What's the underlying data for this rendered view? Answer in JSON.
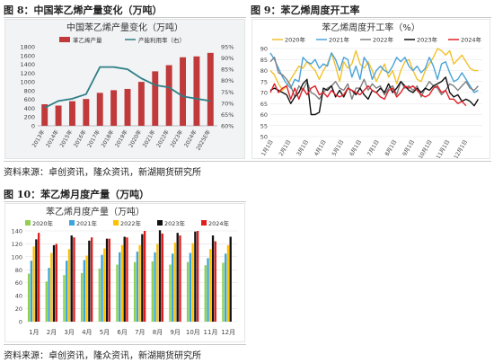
{
  "fig8": {
    "title": "图 8：中国苯乙烯产量变化（万吨）",
    "chart_data": {
      "type": "bar",
      "title": "中国苯乙烯产量变化（万吨）",
      "categories": [
        "2013年",
        "2014年",
        "2015年",
        "2016年",
        "2017年",
        "2018年",
        "2019年",
        "2020年",
        "2021年",
        "2022年",
        "2023年",
        "2024年",
        "2025E年"
      ],
      "series": [
        {
          "name": "苯乙烯产量",
          "type": "bar",
          "axis": "left",
          "color": "#c0393b",
          "values": [
            490,
            460,
            560,
            610,
            750,
            810,
            840,
            1000,
            1240,
            1380,
            1560,
            1580,
            1660
          ]
        },
        {
          "name": "产能利用率（右）",
          "type": "line",
          "axis": "right",
          "color": "#2e7f86",
          "values": [
            68,
            71,
            72,
            74,
            86,
            86,
            85,
            81,
            78,
            77,
            73,
            72,
            71
          ]
        }
      ],
      "y_left": {
        "min": 0,
        "max": 1800,
        "ticks": [
          0,
          200,
          400,
          600,
          800,
          1000,
          1200,
          1400,
          1600,
          1800
        ]
      },
      "y_right": {
        "min": 60,
        "max": 95,
        "ticks": [
          "60%",
          "65%",
          "70%",
          "75%",
          "80%",
          "85%",
          "90%",
          "95%"
        ]
      },
      "legend": "top-center",
      "grid": false
    }
  },
  "fig9": {
    "title": "图 9：苯乙烯周度开工率",
    "chart_data": {
      "type": "line",
      "title": "苯乙烯周度开工率（%）",
      "x_ticks": [
        "1月1日",
        "2月1日",
        "3月1日",
        "4月1日",
        "5月1日",
        "6月1日",
        "7月1日",
        "8月1日",
        "9月1日",
        "10月1日",
        "11月1日",
        "12月1日"
      ],
      "x_range_months": [
        0,
        12
      ],
      "y_range": [
        50,
        90
      ],
      "y_ticks": [
        50,
        55,
        60,
        65,
        70,
        75,
        80,
        85,
        90
      ],
      "legend": "top",
      "grid": true,
      "series": [
        {
          "name": "2020年",
          "color": "#f2c12e",
          "values": [
            80,
            78,
            74,
            71,
            73,
            76,
            79,
            82,
            81,
            84,
            82,
            80,
            76,
            80,
            83,
            88,
            82,
            75,
            84,
            81,
            83,
            89,
            83,
            81,
            84,
            80,
            75,
            79,
            83,
            77,
            80,
            74,
            80,
            84,
            85,
            80,
            76,
            75,
            80,
            83,
            86,
            90,
            89,
            87,
            89,
            83,
            85,
            87,
            84,
            81,
            80,
            80
          ]
        },
        {
          "name": "2021年",
          "color": "#4aa3d9",
          "values": [
            88,
            85,
            81,
            77,
            74,
            72,
            76,
            75,
            86,
            84,
            83,
            85,
            81,
            83,
            82,
            88,
            85,
            80,
            86,
            85,
            77,
            82,
            76,
            86,
            83,
            76,
            80,
            82,
            80,
            79,
            82,
            86,
            84,
            86,
            82,
            80,
            82,
            79,
            81,
            86,
            82,
            76,
            83,
            84,
            79,
            75,
            76,
            79,
            76,
            73,
            70,
            71
          ]
        },
        {
          "name": "2022年",
          "color": "#7f7f7f",
          "values": [
            84,
            86,
            79,
            78,
            76,
            73,
            68,
            73,
            71,
            75,
            70,
            69,
            67,
            70,
            72,
            73,
            75,
            72,
            71,
            74,
            67,
            72,
            72,
            76,
            71,
            74,
            72,
            73,
            69,
            72,
            73,
            69,
            75,
            72,
            73,
            71,
            73,
            68,
            72,
            75,
            73,
            72,
            69,
            71,
            74,
            73,
            71,
            73,
            75,
            72,
            71,
            73
          ]
        },
        {
          "name": "2023年",
          "color": "#111111",
          "values": [
            71,
            72,
            71,
            70,
            69,
            65,
            68,
            70,
            74,
            76,
            60,
            60,
            61,
            72,
            71,
            73,
            68,
            71,
            68,
            72,
            71,
            69,
            72,
            69,
            67,
            71,
            70,
            72,
            70,
            74,
            70,
            72,
            75,
            73,
            71,
            70,
            72,
            70,
            72,
            71,
            73,
            74,
            75,
            77,
            70,
            68,
            69,
            66,
            67,
            66,
            64,
            67
          ]
        },
        {
          "name": "2024年",
          "color": "#e0222a",
          "values": [
            70,
            74,
            70,
            72,
            73,
            67,
            72,
            67,
            72,
            69,
            72,
            73,
            69,
            70,
            68,
            71,
            69,
            68,
            69,
            72,
            71,
            70,
            69,
            71,
            73,
            71,
            70,
            68,
            67,
            71,
            72,
            68,
            70,
            73,
            72,
            73,
            71,
            69,
            68,
            69,
            72,
            73,
            70,
            71,
            67,
            67,
            65,
            66,
            64
          ]
        }
      ]
    }
  },
  "source_top": "资料来源：卓创资讯，隆众资讯，新湖期货研究所",
  "fig10": {
    "title": "图 10：苯乙烯月度产量（万吨）",
    "chart_data": {
      "type": "bar",
      "title": "苯乙烯月度产量（万吨）",
      "categories": [
        "1月",
        "2月",
        "3月",
        "4月",
        "5月",
        "6月",
        "7月",
        "8月",
        "9月",
        "10月",
        "11月",
        "12月"
      ],
      "y_range": [
        0,
        140
      ],
      "y_ticks": [
        0,
        20,
        40,
        60,
        80,
        100,
        120,
        140
      ],
      "legend": "top",
      "grid": true,
      "series": [
        {
          "name": "2020年",
          "color": "#8fd14f",
          "values": [
            74,
            62,
            72,
            75,
            82,
            88,
            92,
            93,
            88,
            92,
            87,
            91
          ]
        },
        {
          "name": "2021年",
          "color": "#3aa6dd",
          "values": [
            94,
            83,
            94,
            95,
            103,
            107,
            108,
            107,
            105,
            106,
            98,
            105
          ]
        },
        {
          "name": "2022年",
          "color": "#ffc000",
          "values": [
            116,
            106,
            112,
            102,
            113,
            118,
            118,
            120,
            122,
            121,
            112,
            118
          ]
        },
        {
          "name": "2023年",
          "color": "#111111",
          "values": [
            127,
            118,
            133,
            125,
            128,
            131,
            135,
            141,
            137,
            139,
            133,
            131
          ]
        },
        {
          "name": "2024年",
          "color": "#e01e1e",
          "values": [
            137,
            120,
            130,
            130,
            128,
            130,
            140,
            136,
            133,
            140,
            124,
            null
          ]
        }
      ]
    }
  },
  "source_bottom": "资料来源：卓创资讯，隆众资讯，新湖期货研究所"
}
